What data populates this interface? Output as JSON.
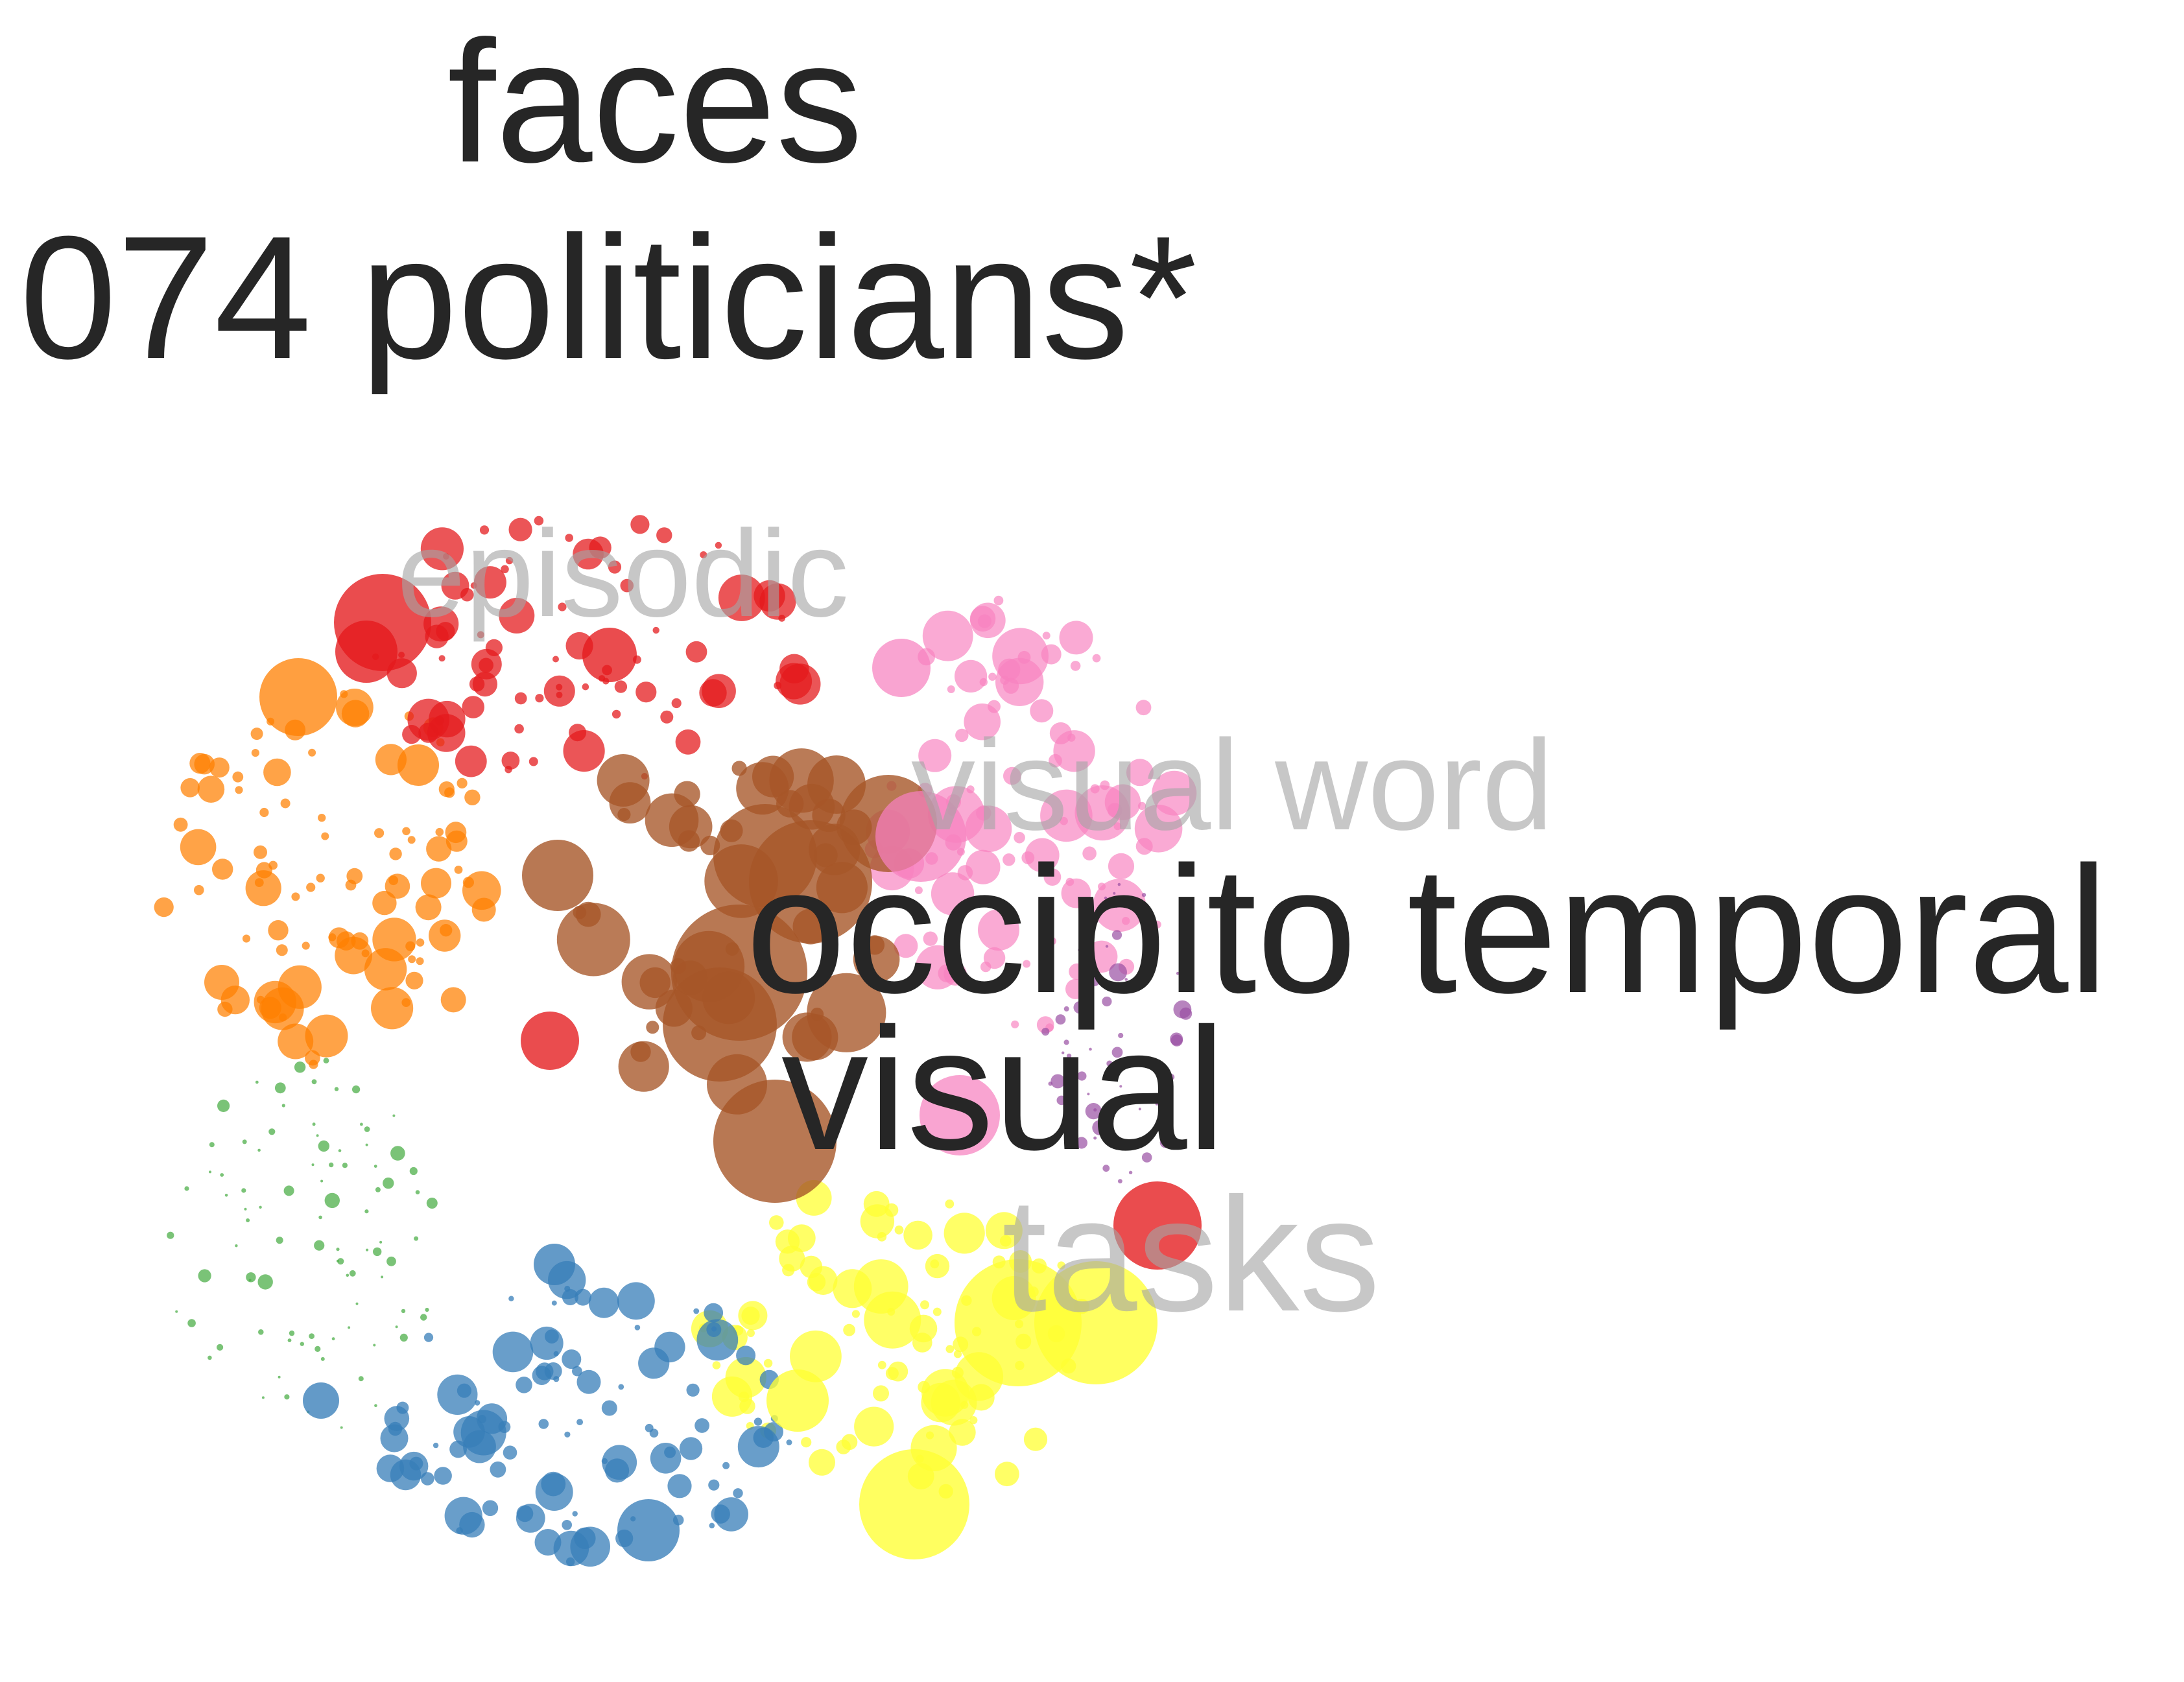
{
  "title_lines": [
    "faces",
    "074 politicians*"
  ],
  "labels": {
    "episodic": "episodic",
    "visual_word": "visual word",
    "occipito_temporal": "occipito temporal",
    "visual": "visual",
    "tasks": "tasks"
  },
  "colors": {
    "red": "#e41a1c",
    "orange": "#ff7f00",
    "brown": "#a65628",
    "pink": "#f781bf",
    "purple": "#984ea3",
    "green": "#4daf4a",
    "blue": "#377eb8",
    "yellow": "#ffff33",
    "text_dark": "#262626",
    "text_faint": "#a5a5a5"
  }
}
